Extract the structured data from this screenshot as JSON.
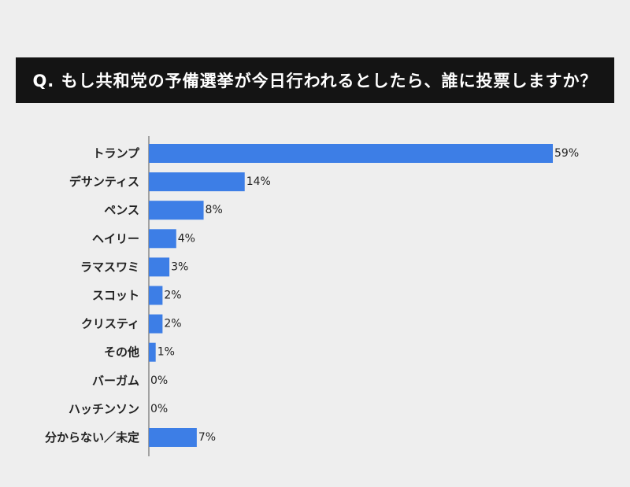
{
  "title": "Q. もし共和党の予備選挙が今日行われるとしたら、誰に投票しますか？",
  "colors": {
    "background": "#eeeeee",
    "banner": "#141414",
    "bar": "#3d7ee6",
    "axis": "#555555",
    "text": "#222222"
  },
  "chart_data": {
    "type": "bar",
    "orientation": "horizontal",
    "title": "Q. もし共和党の予備選挙が今日行われるとしたら、誰に投票しますか？",
    "categories": [
      "トランプ",
      "デサンティス",
      "ペンス",
      "ヘイリー",
      "ラマスワミ",
      "スコット",
      "クリスティ",
      "その他",
      "バーガム",
      "ハッチンソン",
      "分からない／未定"
    ],
    "values": [
      59,
      14,
      8,
      4,
      3,
      2,
      2,
      1,
      0,
      0,
      7
    ],
    "value_labels": [
      "59%",
      "14%",
      "8%",
      "4%",
      "3%",
      "2%",
      "2%",
      "1%",
      "0%",
      "0%",
      "7%"
    ],
    "unit": "%",
    "xlim": [
      0,
      59
    ],
    "grid": false,
    "legend": "none"
  }
}
